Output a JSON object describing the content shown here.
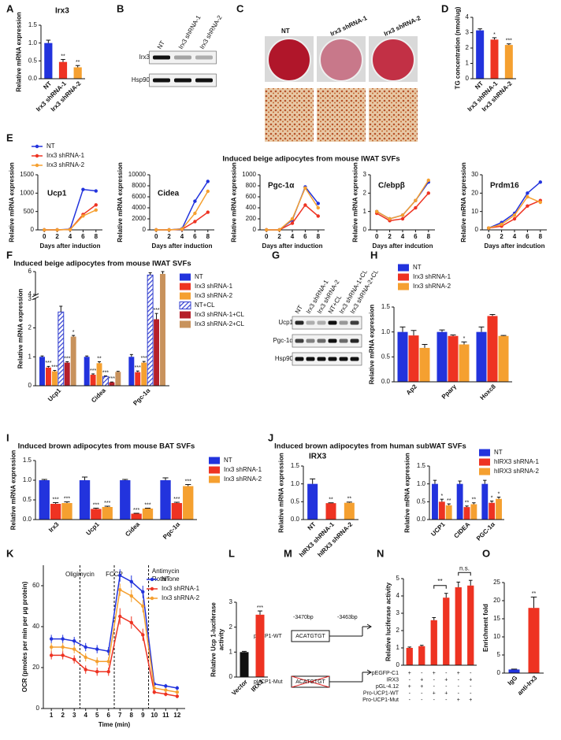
{
  "chart_data": [
    {
      "type": "bar",
      "panel": "A",
      "title": "Irx3",
      "ylabel": "Relative mRNA expression",
      "categories": [
        "NT",
        "Irx3 shRNA-1",
        "Irx3 shRNA-2"
      ],
      "values": [
        1.0,
        0.47,
        0.32
      ],
      "errors": [
        0.08,
        0.07,
        0.05
      ],
      "sig": [
        null,
        "**",
        "**"
      ],
      "colors": [
        "#2233dd",
        "#ee3322",
        "#f5a030"
      ],
      "ylim": [
        0,
        1.5
      ],
      "yticks": [
        {
          "value": 0,
          "label": "0.0"
        },
        0.5,
        {
          "value": 1,
          "label": "1.0"
        },
        1.5
      ]
    },
    {
      "type": "bar",
      "panel": "D",
      "ylabel": "TG concentration (nmol/ug)",
      "categories": [
        "NT",
        "Irx3 shRNA-1",
        "Irx3 shRNA-2"
      ],
      "values": [
        3.15,
        2.55,
        2.2
      ],
      "errors": [
        0.1,
        0.12,
        0.07
      ],
      "sig": [
        null,
        "*",
        "***"
      ],
      "colors": [
        "#2233dd",
        "#ee3322",
        "#f5a030"
      ],
      "ylim": [
        0,
        4
      ],
      "yticks": [
        0,
        1,
        2,
        3,
        4
      ]
    },
    {
      "type": "line",
      "panel": "E",
      "heading": "Induced beige adipocytes from mouse IWAT SVFs",
      "title": "Ucp1",
      "ylabel": "Relative mRNA expression",
      "xlabel": "Days after induction",
      "x": [
        0,
        2,
        4,
        6,
        8
      ],
      "xlim": [
        -1,
        9
      ],
      "xticks": [
        0,
        2,
        4,
        6,
        8
      ],
      "ylim": [
        0,
        1500
      ],
      "yticks": [
        0,
        500,
        1000,
        1500
      ],
      "series": [
        {
          "name": "NT",
          "color": "#2233dd",
          "values": [
            0,
            0,
            20,
            1100,
            1060
          ]
        },
        {
          "name": "Irx3 shRNA-1",
          "color": "#ee3322",
          "values": [
            0,
            0,
            10,
            420,
            680
          ]
        },
        {
          "name": "Irx3 shRNA-2",
          "color": "#f5a030",
          "values": [
            0,
            0,
            10,
            380,
            540
          ]
        }
      ]
    },
    {
      "type": "line",
      "title": "Cidea",
      "ylabel": "Relative mRNA expression",
      "xlabel": "Days after induction",
      "x": [
        0,
        2,
        4,
        6,
        8
      ],
      "xlim": [
        -1,
        9
      ],
      "xticks": [
        0,
        2,
        4,
        6,
        8
      ],
      "ylim": [
        0,
        10000
      ],
      "yticks": [
        0,
        2000,
        4000,
        6000,
        8000,
        10000
      ],
      "series": [
        {
          "color": "#2233dd",
          "values": [
            0,
            0,
            200,
            5200,
            8800
          ]
        },
        {
          "color": "#ee3322",
          "values": [
            0,
            0,
            100,
            1500,
            3200
          ]
        },
        {
          "color": "#f5a030",
          "values": [
            0,
            0,
            150,
            3000,
            7000
          ]
        }
      ]
    },
    {
      "type": "line",
      "title": "Pgc-1α",
      "ylabel": "Relative mRNA expression",
      "xlabel": "Days after induction",
      "x": [
        0,
        2,
        4,
        6,
        8
      ],
      "xlim": [
        -1,
        9
      ],
      "xticks": [
        0,
        2,
        4,
        6,
        8
      ],
      "ylim": [
        0,
        1000
      ],
      "yticks": [
        0,
        200,
        400,
        600,
        800,
        1000
      ],
      "series": [
        {
          "color": "#2233dd",
          "values": [
            0,
            0,
            180,
            780,
            480
          ]
        },
        {
          "color": "#ee3322",
          "values": [
            0,
            0,
            120,
            450,
            250
          ]
        },
        {
          "color": "#f5a030",
          "values": [
            0,
            0,
            200,
            760,
            400
          ]
        }
      ]
    },
    {
      "type": "line",
      "title": "C/ebpβ",
      "ylabel": "Relative mRNA expression",
      "xlabel": "Days after indcution",
      "x": [
        0,
        2,
        4,
        6,
        8
      ],
      "xlim": [
        -1,
        9
      ],
      "xticks": [
        0,
        2,
        4,
        6,
        8
      ],
      "ylim": [
        0,
        3
      ],
      "yticks": [
        0,
        1,
        2,
        3
      ],
      "series": [
        {
          "color": "#2233dd",
          "values": [
            1.0,
            0.6,
            0.8,
            1.6,
            2.6
          ]
        },
        {
          "color": "#ee3322",
          "values": [
            0.9,
            0.5,
            0.6,
            1.2,
            2.0
          ]
        },
        {
          "color": "#f5a030",
          "values": [
            1.0,
            0.6,
            0.8,
            1.6,
            2.7
          ]
        }
      ]
    },
    {
      "type": "line",
      "title": "Prdm16",
      "ylabel": "Relative mRNA expression",
      "xlabel": "Days after indcution",
      "x": [
        0,
        2,
        4,
        6,
        8
      ],
      "xlim": [
        -1,
        9
      ],
      "xticks": [
        0,
        2,
        4,
        6,
        8
      ],
      "ylim": [
        0,
        30
      ],
      "yticks": [
        0,
        10,
        20,
        30
      ],
      "series": [
        {
          "color": "#2233dd",
          "values": [
            1,
            4,
            9,
            20,
            26
          ]
        },
        {
          "color": "#ee3322",
          "values": [
            1,
            2,
            6,
            13,
            16
          ]
        },
        {
          "color": "#f5a030",
          "values": [
            1,
            3,
            8,
            18,
            15
          ]
        }
      ]
    },
    {
      "type": "bar",
      "panel": "F",
      "heading": "Induced beige adipocytes from mouse IWAT SVFs",
      "ylabel": "Relative mRNA expression",
      "categories": [
        "Ucp1",
        "Cidea",
        "Pgc-1α"
      ],
      "ylim": [
        0,
        6
      ],
      "ybreak": [
        3,
        4
      ],
      "yticks": [
        0,
        1,
        2,
        3,
        4,
        6
      ],
      "series": [
        {
          "name": "NT",
          "color": "#2233dd",
          "values": [
            1.0,
            1.0,
            1.0
          ],
          "errors": [
            0.03,
            0.03,
            0.08
          ]
        },
        {
          "name": "Irx3 shRNA-1",
          "color": "#ee3322",
          "values": [
            0.63,
            0.38,
            0.47
          ],
          "errors": [
            0.04,
            0.03,
            0.04
          ],
          "sig": [
            "***",
            "***",
            "***"
          ]
        },
        {
          "name": "Irx3 shRNA-2",
          "color": "#f5a030",
          "values": [
            0.5,
            0.78,
            0.8
          ],
          "errors": [
            0.03,
            0.05,
            0.04
          ],
          "sig": [
            "***",
            "**",
            "***"
          ]
        },
        {
          "name": "NT+CL",
          "color": "#3340d0",
          "hatch": true,
          "values": [
            2.55,
            0.32,
            5.7
          ],
          "errors": [
            0.2,
            0.02,
            0.2
          ],
          "sig": [
            null,
            "***",
            null
          ]
        },
        {
          "name": "Irx3 shRNA-1+CL",
          "color": "#b5202a",
          "values": [
            0.8,
            0.12,
            2.3
          ],
          "errors": [
            0.03,
            0.01,
            0.2
          ],
          "sig": [
            "***",
            "***",
            "***"
          ]
        },
        {
          "name": "Irx3 shRNA-2+CL",
          "color": "#c8925c",
          "values": [
            1.7,
            0.48,
            5.8
          ],
          "errors": [
            0.04,
            0.02,
            0.2
          ],
          "sig": [
            "*",
            null,
            null
          ]
        }
      ]
    },
    {
      "type": "bar",
      "panel": "H",
      "ylabel": "Relative mRNA expression",
      "categories": [
        "Ap2",
        "Pparγ",
        "Hoxc8"
      ],
      "ylim": [
        0,
        1.5
      ],
      "yticks": [
        {
          "value": 0,
          "label": "0.0"
        },
        0.5,
        {
          "value": 1,
          "label": "1.0"
        },
        1.5
      ],
      "series": [
        {
          "name": "NT",
          "color": "#2233dd",
          "values": [
            1.0,
            1.0,
            1.0
          ],
          "errors": [
            0.1,
            0.04,
            0.1
          ]
        },
        {
          "name": "Irx3 shRNA-1",
          "color": "#ee3322",
          "values": [
            0.93,
            0.92,
            1.32
          ],
          "errors": [
            0.1,
            0.02,
            0.03
          ]
        },
        {
          "name": "Irx3 shRNA-2",
          "color": "#f5a030",
          "values": [
            0.68,
            0.75,
            0.92
          ],
          "errors": [
            0.07,
            0.05,
            0.01
          ],
          "sig": [
            null,
            "*",
            null
          ]
        }
      ]
    },
    {
      "type": "bar",
      "panel": "I",
      "heading": "Induced brown adipocytes from mouse BAT SVFs",
      "ylabel": "Relative mRNA expression",
      "categories": [
        "Irx3",
        "Ucp1",
        "Cidea",
        "Pgc-1α"
      ],
      "ylim": [
        0,
        1.5
      ],
      "yticks": [
        {
          "value": 0,
          "label": "0.0"
        },
        0.5,
        {
          "value": 1,
          "label": "1.0"
        },
        1.5
      ],
      "series": [
        {
          "name": "NT",
          "color": "#2233dd",
          "values": [
            1.0,
            1.0,
            1.0,
            1.0
          ],
          "errors": [
            0.02,
            0.08,
            0.02,
            0.06
          ]
        },
        {
          "name": "Irx3 shRNA-1",
          "color": "#ee3322",
          "values": [
            0.4,
            0.27,
            0.15,
            0.42
          ],
          "errors": [
            0.03,
            0.02,
            0.01,
            0.02
          ],
          "sig": [
            "***",
            "***",
            "***",
            "***"
          ]
        },
        {
          "name": "Irx3 shRNA-2",
          "color": "#f5a030",
          "values": [
            0.42,
            0.32,
            0.28,
            0.85
          ],
          "errors": [
            0.03,
            0.02,
            0.01,
            0.04
          ],
          "sig": [
            "***",
            "***",
            "***",
            "***"
          ]
        }
      ]
    },
    {
      "type": "bar",
      "panel": "J",
      "heading": "Induced brown adipocytes from human subWAT SVFs",
      "title": "IRX3",
      "ylabel": "Relative mRNA expression",
      "categories": [
        "NT",
        "hIRX3 shRNA-1",
        "hIRX3 shRNA-2"
      ],
      "values": [
        1.0,
        0.46,
        0.47
      ],
      "errors": [
        0.14,
        0.01,
        0.02
      ],
      "sig": [
        null,
        "**",
        "**"
      ],
      "colors": [
        "#2233dd",
        "#ee3322",
        "#f5a030"
      ],
      "ylim": [
        0,
        1.5
      ],
      "yticks": [
        {
          "value": 0,
          "label": "0.0"
        },
        0.5,
        {
          "value": 1,
          "label": "1.0"
        },
        1.5
      ]
    },
    {
      "type": "bar",
      "ylabel": "Relative mRNA expression",
      "categories": [
        "UCP1",
        "CIDEA",
        "PGC-1α"
      ],
      "ylim": [
        0,
        1.5
      ],
      "yticks": [
        {
          "value": 0,
          "label": "0.0"
        },
        0.5,
        {
          "value": 1,
          "label": "1.0"
        },
        1.5
      ],
      "series": [
        {
          "name": "NT",
          "color": "#2233dd",
          "values": [
            1.0,
            1.0,
            1.0
          ],
          "errors": [
            0.1,
            0.08,
            0.1
          ]
        },
        {
          "name": "hIRX3 shRNA-1",
          "color": "#ee3322",
          "values": [
            0.5,
            0.35,
            0.47
          ],
          "errors": [
            0.07,
            0.03,
            0.05
          ],
          "sig": [
            "*",
            "**",
            "*"
          ]
        },
        {
          "name": "hIRX3 shRNA-2",
          "color": "#f5a030",
          "values": [
            0.4,
            0.43,
            0.58
          ],
          "errors": [
            0.04,
            0.04,
            0.05
          ],
          "sig": [
            "**",
            "**",
            "*"
          ]
        }
      ]
    },
    {
      "type": "line",
      "panel": "K",
      "ylabel": "OCR (pmoles per min per μg protein)",
      "xlabel": "Time (min)",
      "annotations": [
        "Oligimycin",
        "FCCP",
        "Antimycin",
        "Rotenone"
      ],
      "x": [
        1,
        2,
        3,
        4,
        5,
        6,
        7,
        8,
        9,
        10,
        11,
        12
      ],
      "xlim": [
        0.3,
        12.7
      ],
      "xticks": [
        1,
        2,
        3,
        4,
        5,
        6,
        7,
        8,
        9,
        10,
        11,
        12
      ],
      "ylim": [
        0,
        70
      ],
      "yticks": [
        0,
        20,
        40,
        60
      ],
      "series": [
        {
          "name": "NT",
          "color": "#2233dd",
          "values": [
            34,
            34,
            33,
            30,
            29,
            28,
            65,
            62,
            57,
            12,
            11,
            10
          ],
          "errors": [
            2,
            2,
            2,
            2,
            2,
            2,
            3,
            3,
            3,
            1,
            1,
            1
          ]
        },
        {
          "name": "Irx3 shRNA-1",
          "color": "#ee3322",
          "values": [
            26,
            26,
            24,
            19,
            18,
            18,
            45,
            42,
            36,
            8,
            7,
            6
          ],
          "errors": [
            2,
            2,
            2,
            2,
            2,
            2,
            4,
            3,
            3,
            1,
            1,
            1
          ]
        },
        {
          "name": "Irx3 shRNA-2",
          "color": "#f5a030",
          "values": [
            30,
            30,
            29,
            25,
            23,
            23,
            58,
            55,
            50,
            10,
            9,
            8
          ],
          "errors": [
            2,
            2,
            2,
            2,
            2,
            2,
            3,
            3,
            3,
            1,
            1,
            1
          ]
        }
      ]
    },
    {
      "type": "bar",
      "panel": "L",
      "ylabel": [
        "Relative Ucp 1-luciferase",
        "activity"
      ],
      "categories": [
        "Vector",
        "IRX3"
      ],
      "values": [
        1.0,
        2.5
      ],
      "errors": [
        0.03,
        0.15
      ],
      "sig": [
        null,
        "***"
      ],
      "colors": [
        "#111111",
        "#ee3322"
      ],
      "ylim": [
        0,
        3
      ],
      "yticks": [
        0,
        1,
        2,
        3
      ]
    },
    {
      "type": "bar",
      "panel": "N",
      "ylabel": "Relative luciferase activity",
      "values": [
        1.0,
        1.1,
        2.6,
        3.9,
        4.5,
        4.6
      ],
      "errors": [
        0.05,
        0.05,
        0.15,
        0.25,
        0.3,
        0.3
      ],
      "sig": [
        null,
        null,
        null,
        "**",
        null,
        "n.s."
      ],
      "color": "#ee3322",
      "ylim": [
        0,
        5
      ],
      "yticks": [
        0,
        1,
        2,
        3,
        4,
        5
      ],
      "conditions": [
        {
          "label": "pEGFP-C1",
          "signs": [
            "+",
            "-",
            "+",
            "-",
            "+",
            "-"
          ]
        },
        {
          "label": "IRX3",
          "signs": [
            "-",
            "+",
            "-",
            "+",
            "-",
            "+"
          ]
        },
        {
          "label": "pGL-4.12",
          "signs": [
            "+",
            "+",
            "-",
            "-",
            "-",
            "-"
          ]
        },
        {
          "label": "Pro-UCP1-WT",
          "signs": [
            "-",
            "-",
            "+",
            "+",
            "-",
            "-"
          ]
        },
        {
          "label": "Pro-UCP1-Mut",
          "signs": [
            "-",
            "-",
            "-",
            "-",
            "+",
            "+"
          ]
        }
      ]
    },
    {
      "type": "bar",
      "panel": "O",
      "ylabel": "Enrichment fold",
      "categories": [
        "IgG",
        "anti-Irx3"
      ],
      "values": [
        1.0,
        18
      ],
      "errors": [
        0.1,
        3
      ],
      "sig": [
        null,
        "**"
      ],
      "colors": [
        "#2233dd",
        "#ee3322"
      ],
      "ylim": [
        0,
        25
      ],
      "yticks": [
        0,
        5,
        10,
        15,
        20,
        25
      ]
    }
  ],
  "blots": [
    {
      "panel": "B",
      "columns": [
        "NT",
        "Irx3 shRNA-1",
        "Irx3 shRNA-2"
      ],
      "rows": [
        "Irx3",
        "Hsp90"
      ]
    },
    {
      "panel": "G",
      "columns": [
        "NT",
        "Irx3 shRNA-1",
        "Irx3 shRNA-2",
        "NT+CL",
        "Irx3 shRNA-1+CL",
        "Irx3 shRNA-2+CL"
      ],
      "rows": [
        "Ucp1",
        "Pgc-1α",
        "Hsp90"
      ]
    }
  ],
  "photos": {
    "panel": "C",
    "labels": [
      "NT",
      "Irx3 shRNA-1",
      "Irx3 shRNA-2"
    ]
  },
  "diagram": {
    "panel": "M",
    "start": "-3470bp",
    "end": "-3463bp",
    "wt": "pUCP1-WT",
    "mut": "pUCP1-Mut",
    "motif_wt": "ACATGTGT",
    "motif_mut": "ACATGTGT"
  }
}
